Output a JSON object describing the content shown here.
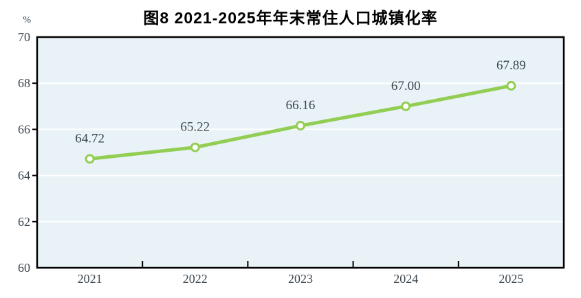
{
  "header": {
    "title": "图8  2021-2025年年末常住人口城镇化率",
    "unit_label": "%"
  },
  "colors": {
    "line": "#92CE53",
    "marker_fill": "#FFFFFF",
    "plot_bg": "#E9F2F7",
    "grid": "#FFFFFF",
    "axis": "#000000",
    "number_text": "#3C4650",
    "title_text": "#000000"
  },
  "chart_data": {
    "type": "line",
    "title": "图8  2021-2025年年末常住人口城镇化率",
    "categories": [
      "2021",
      "2022",
      "2023",
      "2024",
      "2025"
    ],
    "values": [
      64.72,
      65.22,
      66.16,
      67.0,
      67.89
    ],
    "point_labels": [
      "64.72",
      "65.22",
      "66.16",
      "67.00",
      "67.89"
    ],
    "xlabel": "",
    "ylabel": "%",
    "ylim": [
      60,
      70
    ],
    "yticks": [
      60,
      62,
      64,
      66,
      68,
      70
    ],
    "grid": true,
    "legend_position": "none",
    "marker": "circle-open",
    "label_position": "above"
  }
}
